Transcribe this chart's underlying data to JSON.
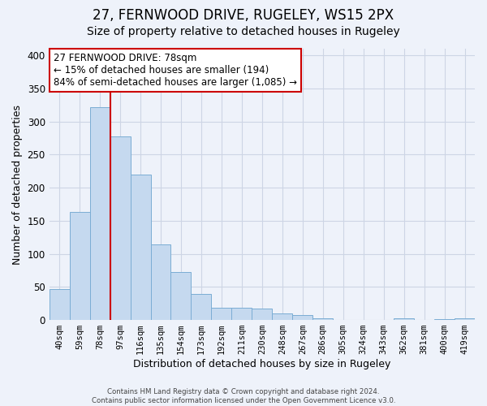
{
  "title": "27, FERNWOOD DRIVE, RUGELEY, WS15 2PX",
  "subtitle": "Size of property relative to detached houses in Rugeley",
  "xlabel": "Distribution of detached houses by size in Rugeley",
  "ylabel": "Number of detached properties",
  "footer_line1": "Contains HM Land Registry data © Crown copyright and database right 2024.",
  "footer_line2": "Contains public sector information licensed under the Open Government Licence v3.0.",
  "bin_labels": [
    "40sqm",
    "59sqm",
    "78sqm",
    "97sqm",
    "116sqm",
    "135sqm",
    "154sqm",
    "173sqm",
    "192sqm",
    "211sqm",
    "230sqm",
    "248sqm",
    "267sqm",
    "286sqm",
    "305sqm",
    "324sqm",
    "343sqm",
    "362sqm",
    "381sqm",
    "400sqm",
    "419sqm"
  ],
  "bar_heights": [
    47,
    163,
    322,
    277,
    220,
    114,
    73,
    39,
    18,
    18,
    17,
    10,
    8,
    3,
    0,
    0,
    0,
    3,
    0,
    1,
    2
  ],
  "highlight_bin_index": 2,
  "highlight_line_color": "#cc0000",
  "annotation_line1": "27 FERNWOOD DRIVE: 78sqm",
  "annotation_line2": "← 15% of detached houses are smaller (194)",
  "annotation_line3": "84% of semi-detached houses are larger (1,085) →",
  "ylim": [
    0,
    410
  ],
  "yticks": [
    0,
    50,
    100,
    150,
    200,
    250,
    300,
    350,
    400
  ],
  "grid_color": "#cdd5e5",
  "background_color": "#eef2fa",
  "bar_facecolor": "#c5d9ef",
  "bar_edgecolor": "#7badd4",
  "title_fontsize": 12,
  "subtitle_fontsize": 10,
  "ylabel_fontsize": 9,
  "xlabel_fontsize": 9
}
